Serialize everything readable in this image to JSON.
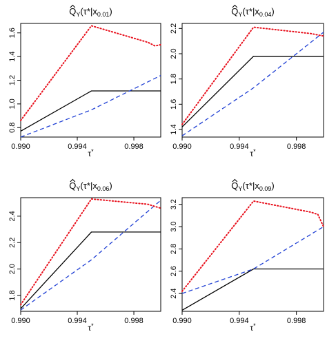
{
  "chart_data": [
    {
      "type": "line",
      "title": {
        "main": "Q",
        "sub": "Y",
        "arg": "(τ*|x",
        "argsub": "0.01",
        "close": ")"
      },
      "xlabel": {
        "base": "τ",
        "sup": "*"
      },
      "ylabel": "",
      "xlim": [
        0.99,
        0.9999
      ],
      "ylim": [
        0.72,
        1.68
      ],
      "xticks": [
        0.99,
        0.994,
        0.998
      ],
      "xtick_labels": [
        "0.990",
        "0.994",
        "0.998"
      ],
      "yticks": [
        0.8,
        1.0,
        1.2,
        1.4,
        1.6
      ],
      "ytick_labels": [
        "0.8",
        "1.0",
        "1.2",
        "1.4",
        "1.6"
      ],
      "grid": false,
      "series": [
        {
          "style": "solid",
          "color": "#000000",
          "x": [
            0.99,
            0.995,
            0.9999
          ],
          "y": [
            0.77,
            1.11,
            1.11
          ]
        },
        {
          "style": "dashed",
          "color": "#1f3fd4",
          "x": [
            0.99,
            0.995,
            0.9999
          ],
          "y": [
            0.72,
            0.95,
            1.24
          ]
        },
        {
          "style": "dotted",
          "color": "#e8101c",
          "x": [
            0.99,
            0.995,
            0.999,
            0.9995,
            0.9999
          ],
          "y": [
            0.86,
            1.66,
            1.52,
            1.49,
            1.5
          ]
        }
      ]
    },
    {
      "type": "line",
      "title": {
        "main": "Q",
        "sub": "Y",
        "arg": "(τ*|x",
        "argsub": "0.04",
        "close": ")"
      },
      "xlabel": {
        "base": "τ",
        "sup": "*"
      },
      "ylabel": "",
      "xlim": [
        0.99,
        0.9999
      ],
      "ylim": [
        1.34,
        2.24
      ],
      "xticks": [
        0.99,
        0.994,
        0.998
      ],
      "xtick_labels": [
        "0.990",
        "0.994",
        "0.998"
      ],
      "yticks": [
        1.4,
        1.6,
        1.8,
        2.0,
        2.2
      ],
      "ytick_labels": [
        "1.4",
        "1.6",
        "1.8",
        "2.0",
        "2.2"
      ],
      "grid": false,
      "series": [
        {
          "style": "solid",
          "color": "#000000",
          "x": [
            0.99,
            0.995,
            0.9999
          ],
          "y": [
            1.42,
            1.98,
            1.98
          ]
        },
        {
          "style": "dashed",
          "color": "#1f3fd4",
          "x": [
            0.99,
            0.995,
            0.9999
          ],
          "y": [
            1.35,
            1.73,
            2.17
          ]
        },
        {
          "style": "dotted",
          "color": "#e8101c",
          "x": [
            0.99,
            0.995,
            0.999,
            0.9999
          ],
          "y": [
            1.44,
            2.21,
            2.16,
            2.14
          ]
        }
      ]
    },
    {
      "type": "line",
      "title": {
        "main": "Q",
        "sub": "Y",
        "arg": "(τ*|x",
        "argsub": "0.06",
        "close": ")"
      },
      "xlabel": {
        "base": "τ",
        "sup": "*"
      },
      "ylabel": "",
      "xlim": [
        0.99,
        0.9999
      ],
      "ylim": [
        1.68,
        2.54
      ],
      "xticks": [
        0.99,
        0.994,
        0.998
      ],
      "xtick_labels": [
        "0.990",
        "0.994",
        "0.998"
      ],
      "yticks": [
        1.8,
        2.0,
        2.2,
        2.4
      ],
      "ytick_labels": [
        "1.8",
        "2.0",
        "2.2",
        "2.4"
      ],
      "grid": false,
      "series": [
        {
          "style": "solid",
          "color": "#000000",
          "x": [
            0.99,
            0.995,
            0.9999
          ],
          "y": [
            1.7,
            2.28,
            2.28
          ]
        },
        {
          "style": "dashed",
          "color": "#1f3fd4",
          "x": [
            0.99,
            0.995,
            0.9999
          ],
          "y": [
            1.69,
            2.07,
            2.52
          ]
        },
        {
          "style": "dotted",
          "color": "#e8101c",
          "x": [
            0.99,
            0.995,
            0.999,
            0.9999
          ],
          "y": [
            1.73,
            2.53,
            2.49,
            2.46
          ]
        }
      ]
    },
    {
      "type": "line",
      "title": {
        "main": "Q",
        "sub": "Y",
        "arg": "(τ*|x",
        "argsub": "0.09",
        "close": ")"
      },
      "xlabel": {
        "base": "τ",
        "sup": "*"
      },
      "ylabel": "",
      "xlim": [
        0.99,
        0.9999
      ],
      "ylim": [
        2.24,
        3.26
      ],
      "xticks": [
        0.99,
        0.994,
        0.998
      ],
      "xtick_labels": [
        "0.990",
        "0.994",
        "0.998"
      ],
      "yticks": [
        2.4,
        2.6,
        2.8,
        3.0,
        3.2
      ],
      "ytick_labels": [
        "2.4",
        "2.6",
        "2.8",
        "3.0",
        "3.2"
      ],
      "grid": false,
      "series": [
        {
          "style": "solid",
          "color": "#000000",
          "x": [
            0.99,
            0.995,
            0.9999
          ],
          "y": [
            2.25,
            2.62,
            2.62
          ]
        },
        {
          "style": "dashed",
          "color": "#1f3fd4",
          "x": [
            0.99,
            0.995,
            0.9999
          ],
          "y": [
            2.4,
            2.62,
            3.0
          ]
        },
        {
          "style": "dotted",
          "color": "#e8101c",
          "x": [
            0.99,
            0.995,
            0.999,
            0.9995,
            0.9999
          ],
          "y": [
            2.42,
            3.23,
            3.13,
            3.11,
            3.0
          ]
        }
      ]
    }
  ]
}
